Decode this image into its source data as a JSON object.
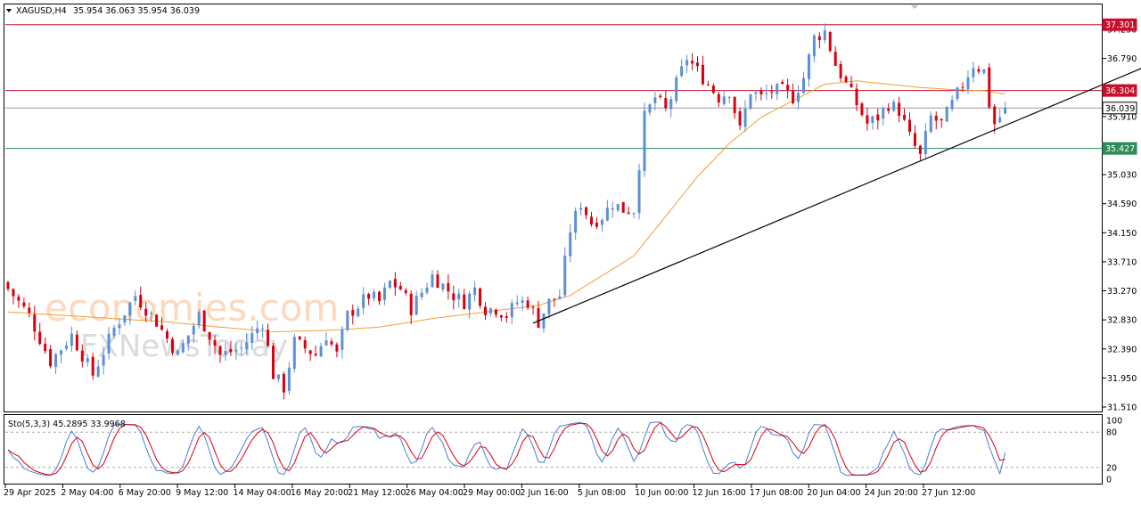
{
  "header": {
    "symbol": "XAGUSD,H4",
    "ohlc": "35.954 36.063 35.954 36.039"
  },
  "watermark": {
    "line1": "economies.com",
    "line2": "FXNewsToday"
  },
  "colors": {
    "bull": "#5b8fd6",
    "bear": "#d9000f",
    "ma": "#f0a030",
    "resistance": "#c8102e",
    "support": "#2e8b57",
    "trendline": "#000000",
    "stoch_main": "#4a7fcf",
    "stoch_signal": "#d9000f"
  },
  "chart_data": {
    "type": "candlestick",
    "symbol": "XAGUSD",
    "timeframe": "H4",
    "y_ticks": [
      "37.230",
      "36.790",
      "36.350",
      "35.910",
      "35.470",
      "35.030",
      "34.590",
      "34.150",
      "33.710",
      "33.270",
      "32.830",
      "32.390",
      "31.950",
      "31.510"
    ],
    "ylim": [
      31.51,
      37.37
    ],
    "x_tick_labels": [
      "29 Apr 2025",
      "2 May 04:00",
      "6 May 20:00",
      "9 May 12:00",
      "14 May 04:00",
      "16 May 20:00",
      "21 May 12:00",
      "26 May 04:00",
      "29 May 00:00",
      "2 Jun 16:00",
      "5 Jun 08:00",
      "10 Jun 00:00",
      "12 Jun 16:00",
      "17 Jun 08:00",
      "20 Jun 04:00",
      "24 Jun 20:00",
      "27 Jun 12:00"
    ],
    "levels": [
      {
        "value": "37.301",
        "kind": "resistance"
      },
      {
        "value": "36.304",
        "kind": "resistance"
      },
      {
        "value": "36.039",
        "kind": "current"
      },
      {
        "value": "35.427",
        "kind": "support"
      }
    ],
    "trendline": {
      "from": {
        "bar": 99,
        "price": 32.78
      },
      "to": {
        "bar": 214,
        "price": 36.65
      }
    },
    "close_path": [
      [
        0,
        33.3
      ],
      [
        4,
        32.9
      ],
      [
        8,
        32.2
      ],
      [
        12,
        32.6
      ],
      [
        16,
        32.0
      ],
      [
        20,
        32.7
      ],
      [
        24,
        33.2
      ],
      [
        28,
        32.8
      ],
      [
        32,
        32.3
      ],
      [
        36,
        32.9
      ],
      [
        40,
        32.3
      ],
      [
        44,
        32.4
      ],
      [
        48,
        32.8
      ],
      [
        50,
        32.0
      ],
      [
        52,
        31.8
      ],
      [
        54,
        32.5
      ],
      [
        58,
        32.3
      ],
      [
        60,
        32.6
      ],
      [
        62,
        32.3
      ],
      [
        64,
        32.9
      ],
      [
        68,
        33.2
      ],
      [
        70,
        33.1
      ],
      [
        72,
        33.4
      ],
      [
        74,
        33.3
      ],
      [
        76,
        33.0
      ],
      [
        80,
        33.5
      ],
      [
        84,
        33.2
      ],
      [
        86,
        33.1
      ],
      [
        88,
        33.3
      ],
      [
        90,
        33.0
      ],
      [
        92,
        33.0
      ],
      [
        94,
        32.9
      ],
      [
        96,
        33.1
      ],
      [
        98,
        33.1
      ],
      [
        100,
        32.8
      ],
      [
        102,
        33.1
      ],
      [
        104,
        33.2
      ],
      [
        106,
        34.2
      ],
      [
        108,
        34.6
      ],
      [
        110,
        34.3
      ],
      [
        112,
        34.4
      ],
      [
        114,
        34.6
      ],
      [
        116,
        34.5
      ],
      [
        118,
        34.5
      ],
      [
        120,
        35.9
      ],
      [
        122,
        36.2
      ],
      [
        124,
        36.0
      ],
      [
        126,
        36.4
      ],
      [
        128,
        36.8
      ],
      [
        130,
        36.6
      ],
      [
        132,
        36.4
      ],
      [
        134,
        36.2
      ],
      [
        136,
        36.3
      ],
      [
        138,
        35.7
      ],
      [
        140,
        36.3
      ],
      [
        142,
        36.2
      ],
      [
        144,
        36.3
      ],
      [
        146,
        36.3
      ],
      [
        148,
        36.2
      ],
      [
        150,
        36.5
      ],
      [
        152,
        37.1
      ],
      [
        154,
        37.2
      ],
      [
        156,
        36.7
      ],
      [
        158,
        36.4
      ],
      [
        160,
        36.1
      ],
      [
        162,
        35.8
      ],
      [
        164,
        35.9
      ],
      [
        166,
        36.1
      ],
      [
        168,
        36.0
      ],
      [
        170,
        35.6
      ],
      [
        172,
        35.3
      ],
      [
        174,
        35.9
      ],
      [
        176,
        35.8
      ],
      [
        178,
        36.1
      ],
      [
        180,
        36.4
      ],
      [
        182,
        36.7
      ],
      [
        184,
        36.6
      ],
      [
        185,
        36.1
      ],
      [
        186,
        35.8
      ],
      [
        187,
        35.9
      ],
      [
        188,
        36.04
      ]
    ],
    "moving_average_path": [
      [
        0,
        32.95
      ],
      [
        10,
        32.9
      ],
      [
        20,
        32.85
      ],
      [
        30,
        32.8
      ],
      [
        40,
        32.72
      ],
      [
        50,
        32.65
      ],
      [
        60,
        32.67
      ],
      [
        70,
        32.72
      ],
      [
        80,
        32.85
      ],
      [
        90,
        32.95
      ],
      [
        100,
        33.05
      ],
      [
        106,
        33.2
      ],
      [
        112,
        33.5
      ],
      [
        118,
        33.8
      ],
      [
        124,
        34.4
      ],
      [
        130,
        35.0
      ],
      [
        136,
        35.5
      ],
      [
        142,
        35.9
      ],
      [
        148,
        36.15
      ],
      [
        154,
        36.4
      ],
      [
        160,
        36.45
      ],
      [
        166,
        36.4
      ],
      [
        172,
        36.35
      ],
      [
        178,
        36.32
      ],
      [
        184,
        36.3
      ],
      [
        188,
        36.25
      ]
    ],
    "stochastic": {
      "label": "Sto(5,3,3) 45.2895 33.9968",
      "main": 45.2895,
      "signal": 33.9968,
      "y_ticks": [
        "100",
        "80",
        "20",
        "0"
      ],
      "levels": [
        80,
        20
      ]
    }
  }
}
